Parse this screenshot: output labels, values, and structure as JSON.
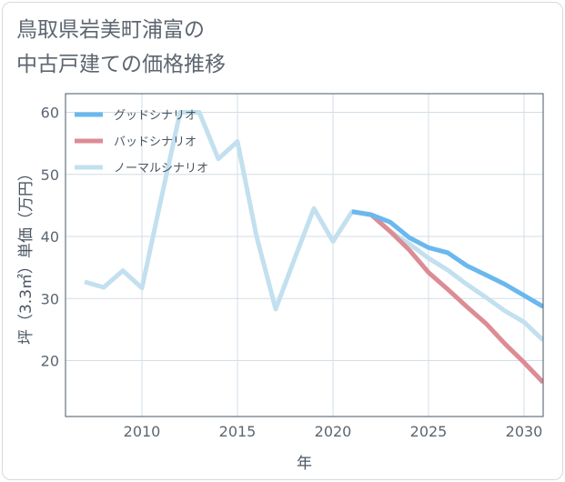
{
  "title_lines": [
    "鳥取県岩美町浦富の",
    "中古戸建ての価格推移"
  ],
  "chart_data": {
    "type": "line",
    "title": "鳥取県岩美町浦富の中古戸建ての価格推移",
    "xlabel": "年",
    "ylabel": "坪（3.3㎡）単価（万円）",
    "xlim": [
      2006,
      2031
    ],
    "ylim": [
      11,
      63
    ],
    "xticks": [
      2010,
      2015,
      2020,
      2025,
      2030
    ],
    "yticks": [
      20,
      30,
      40,
      50,
      60
    ],
    "grid": true,
    "legend_position": "top-left",
    "series": [
      {
        "name": "ノーマルシナリオ",
        "color": "#c2e0ef",
        "x": [
          2007,
          2008,
          2009,
          2010,
          2011,
          2012,
          2013,
          2014,
          2015,
          2016,
          2017,
          2018,
          2019,
          2020,
          2021,
          2022,
          2023,
          2024,
          2025,
          2026,
          2027,
          2028,
          2029,
          2030,
          2031
        ],
        "values": [
          32.7,
          31.8,
          34.5,
          31.7,
          46.0,
          60.0,
          60.0,
          52.5,
          55.3,
          40.0,
          28.3,
          36.5,
          44.5,
          39.2,
          44.0,
          43.5,
          40.8,
          38.8,
          36.5,
          34.6,
          32.3,
          30.2,
          28.0,
          26.2,
          23.3
        ]
      },
      {
        "name": "バッドシナリオ",
        "color": "#dc8c94",
        "x": [
          2021,
          2022,
          2023,
          2024,
          2025,
          2026,
          2027,
          2028,
          2029,
          2030,
          2031
        ],
        "values": [
          44.0,
          43.5,
          40.8,
          37.8,
          34.2,
          31.5,
          28.7,
          26.0,
          22.7,
          19.7,
          16.5
        ]
      },
      {
        "name": "グッドシナリオ",
        "color": "#6ab8ee",
        "x": [
          2021,
          2022,
          2023,
          2024,
          2025,
          2026,
          2027,
          2028,
          2029,
          2030,
          2031
        ],
        "values": [
          44.0,
          43.5,
          42.3,
          39.8,
          38.2,
          37.4,
          35.3,
          33.8,
          32.3,
          30.5,
          28.7
        ]
      }
    ],
    "legend": [
      {
        "label": "グッドシナリオ",
        "color": "#6ab8ee"
      },
      {
        "label": "バッドシナリオ",
        "color": "#dc8c94"
      },
      {
        "label": "ノーマルシナリオ",
        "color": "#c2e0ef"
      }
    ]
  }
}
